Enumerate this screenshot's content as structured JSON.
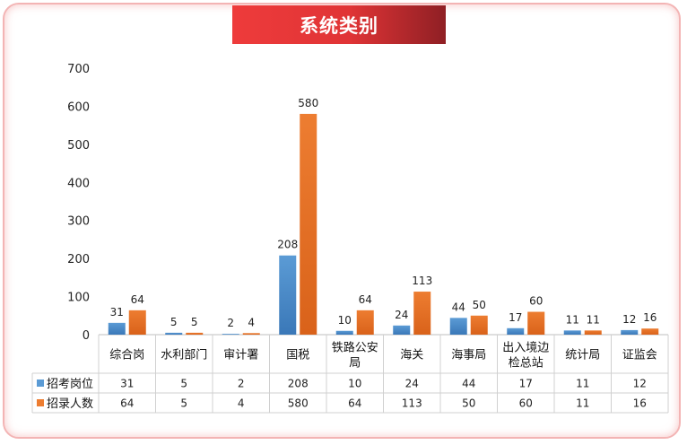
{
  "title": "系统类别",
  "colors": {
    "series1": "#5b9bd5",
    "series2": "#ed7d31",
    "grid": "#d0d0d0",
    "frame": "#f3b4b4"
  },
  "chart_data": {
    "type": "bar",
    "title": "系统类别",
    "categories": [
      [
        "综合岗"
      ],
      [
        "水利部门"
      ],
      [
        "审计署"
      ],
      [
        "国税"
      ],
      [
        "铁路公安",
        "局"
      ],
      [
        "海关"
      ],
      [
        "海事局"
      ],
      [
        "出入境边",
        "检总站"
      ],
      [
        "统计局"
      ],
      [
        "证监会"
      ]
    ],
    "series": [
      {
        "name": "招考岗位",
        "values": [
          31,
          5,
          2,
          208,
          10,
          24,
          44,
          17,
          11,
          12
        ]
      },
      {
        "name": "招录人数",
        "values": [
          64,
          5,
          4,
          580,
          64,
          113,
          50,
          60,
          11,
          16
        ]
      }
    ],
    "ylim": [
      0,
      700
    ],
    "yticks": [
      0,
      100,
      200,
      300,
      400,
      500,
      600,
      700
    ],
    "grid": false,
    "legend": "data-table",
    "xlabel": "",
    "ylabel": ""
  }
}
